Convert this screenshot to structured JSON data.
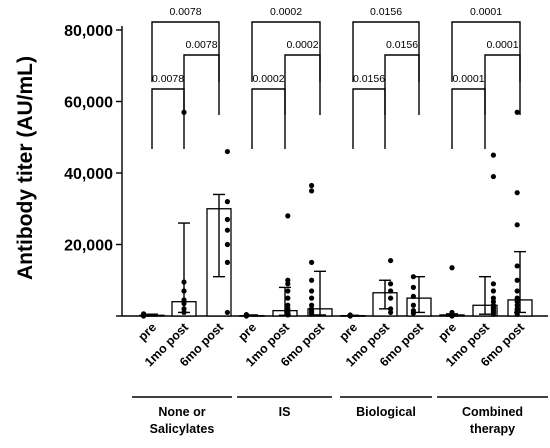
{
  "chart_data": {
    "type": "bar",
    "ylabel": "Antibody titer (AU/mL)",
    "ylim": [
      0,
      80000
    ],
    "yticks": [
      {
        "value": 0,
        "label": ""
      },
      {
        "value": 20000,
        "label": "20,000"
      },
      {
        "value": 40000,
        "label": "40,000"
      },
      {
        "value": 60000,
        "label": "60,000"
      },
      {
        "value": 80000,
        "label": "80,000"
      }
    ],
    "grid": false,
    "groups": [
      {
        "name": "None or Salicylates",
        "name_lines": [
          "None or",
          "Salicylates"
        ],
        "bars": [
          {
            "label": "pre",
            "value": 200,
            "err_low": 0,
            "err_high": 500,
            "points": [
              0,
              100,
              200,
              300,
              600
            ]
          },
          {
            "label": "1mo post",
            "value": 4000,
            "err_low": 1000,
            "err_high": 26000,
            "points": [
              57000,
              9500,
              7000,
              4500,
              3500,
              2000,
              1000
            ]
          },
          {
            "label": "6mo post",
            "value": 30000,
            "err_low": 11000,
            "err_high": 34000,
            "points": [
              46000,
              32000,
              27000,
              24000,
              20000,
              15000,
              1000
            ]
          }
        ]
      },
      {
        "name": "IS",
        "name_lines": [
          "IS"
        ],
        "bars": [
          {
            "label": "pre",
            "value": 100,
            "err_low": 0,
            "err_high": 300,
            "points": [
              0,
              50,
              100,
              150,
              200,
              300,
              400
            ]
          },
          {
            "label": "1mo post",
            "value": 1500,
            "err_low": 200,
            "err_high": 8000,
            "points": [
              28000,
              10000,
              9000,
              7000,
              5000,
              3000,
              2000,
              1500,
              1000,
              800,
              500,
              300
            ]
          },
          {
            "label": "6mo post",
            "value": 2000,
            "err_low": 300,
            "err_high": 12500,
            "points": [
              36500,
              35000,
              15000,
              10000,
              7000,
              5000,
              3000,
              2000,
              1500,
              1000,
              500
            ]
          }
        ]
      },
      {
        "name": "Biological",
        "name_lines": [
          "Biological"
        ],
        "bars": [
          {
            "label": "pre",
            "value": 100,
            "err_low": 0,
            "err_high": 200,
            "points": [
              0,
              100,
              200,
              300
            ]
          },
          {
            "label": "1mo post",
            "value": 6500,
            "err_low": 2000,
            "err_high": 10000,
            "points": [
              15500,
              9000,
              7000,
              5000,
              2000,
              1000
            ]
          },
          {
            "label": "6mo post",
            "value": 5000,
            "err_low": 1000,
            "err_high": 11000,
            "points": [
              11000,
              8000,
              5500,
              3000,
              1500,
              800
            ]
          }
        ]
      },
      {
        "name": "Combined therapy",
        "name_lines": [
          "Combined",
          "therapy"
        ],
        "bars": [
          {
            "label": "pre",
            "value": 300,
            "err_low": 0,
            "err_high": 600,
            "points": [
              13500,
              1000,
              500,
              300,
              200,
              100,
              50,
              0
            ]
          },
          {
            "label": "1mo post",
            "value": 3000,
            "err_low": 500,
            "err_high": 11000,
            "points": [
              45000,
              39000,
              9000,
              7000,
              5000,
              4000,
              3000,
              2500,
              2000,
              1500,
              1000,
              500
            ]
          },
          {
            "label": "6mo post",
            "value": 4500,
            "err_low": 1000,
            "err_high": 18000,
            "points": [
              57000,
              34500,
              25500,
              14000,
              10000,
              7000,
              5000,
              4000,
              3000,
              2000,
              1500,
              1000,
              500
            ]
          }
        ]
      }
    ],
    "comparisons": [
      {
        "group": 0,
        "from": 0,
        "to": 2,
        "p": "0.0078",
        "level": 3
      },
      {
        "group": 0,
        "from": 1,
        "to": 2,
        "p": "0.0078",
        "level": 2
      },
      {
        "group": 0,
        "from": 0,
        "to": 1,
        "p": "0.0078",
        "level": 1
      },
      {
        "group": 1,
        "from": 0,
        "to": 2,
        "p": "0.0002",
        "level": 3
      },
      {
        "group": 1,
        "from": 1,
        "to": 2,
        "p": "0.0002",
        "level": 2
      },
      {
        "group": 1,
        "from": 0,
        "to": 1,
        "p": "0.0002",
        "level": 1
      },
      {
        "group": 2,
        "from": 0,
        "to": 2,
        "p": "0.0156",
        "level": 3
      },
      {
        "group": 2,
        "from": 1,
        "to": 2,
        "p": "0.0156",
        "level": 2
      },
      {
        "group": 2,
        "from": 0,
        "to": 1,
        "p": "0.0156",
        "level": 1
      },
      {
        "group": 3,
        "from": 0,
        "to": 2,
        "p": "0.0001",
        "level": 3
      },
      {
        "group": 3,
        "from": 1,
        "to": 2,
        "p": "0.0001",
        "level": 2
      },
      {
        "group": 3,
        "from": 0,
        "to": 1,
        "p": "0.0001",
        "level": 1
      }
    ]
  }
}
